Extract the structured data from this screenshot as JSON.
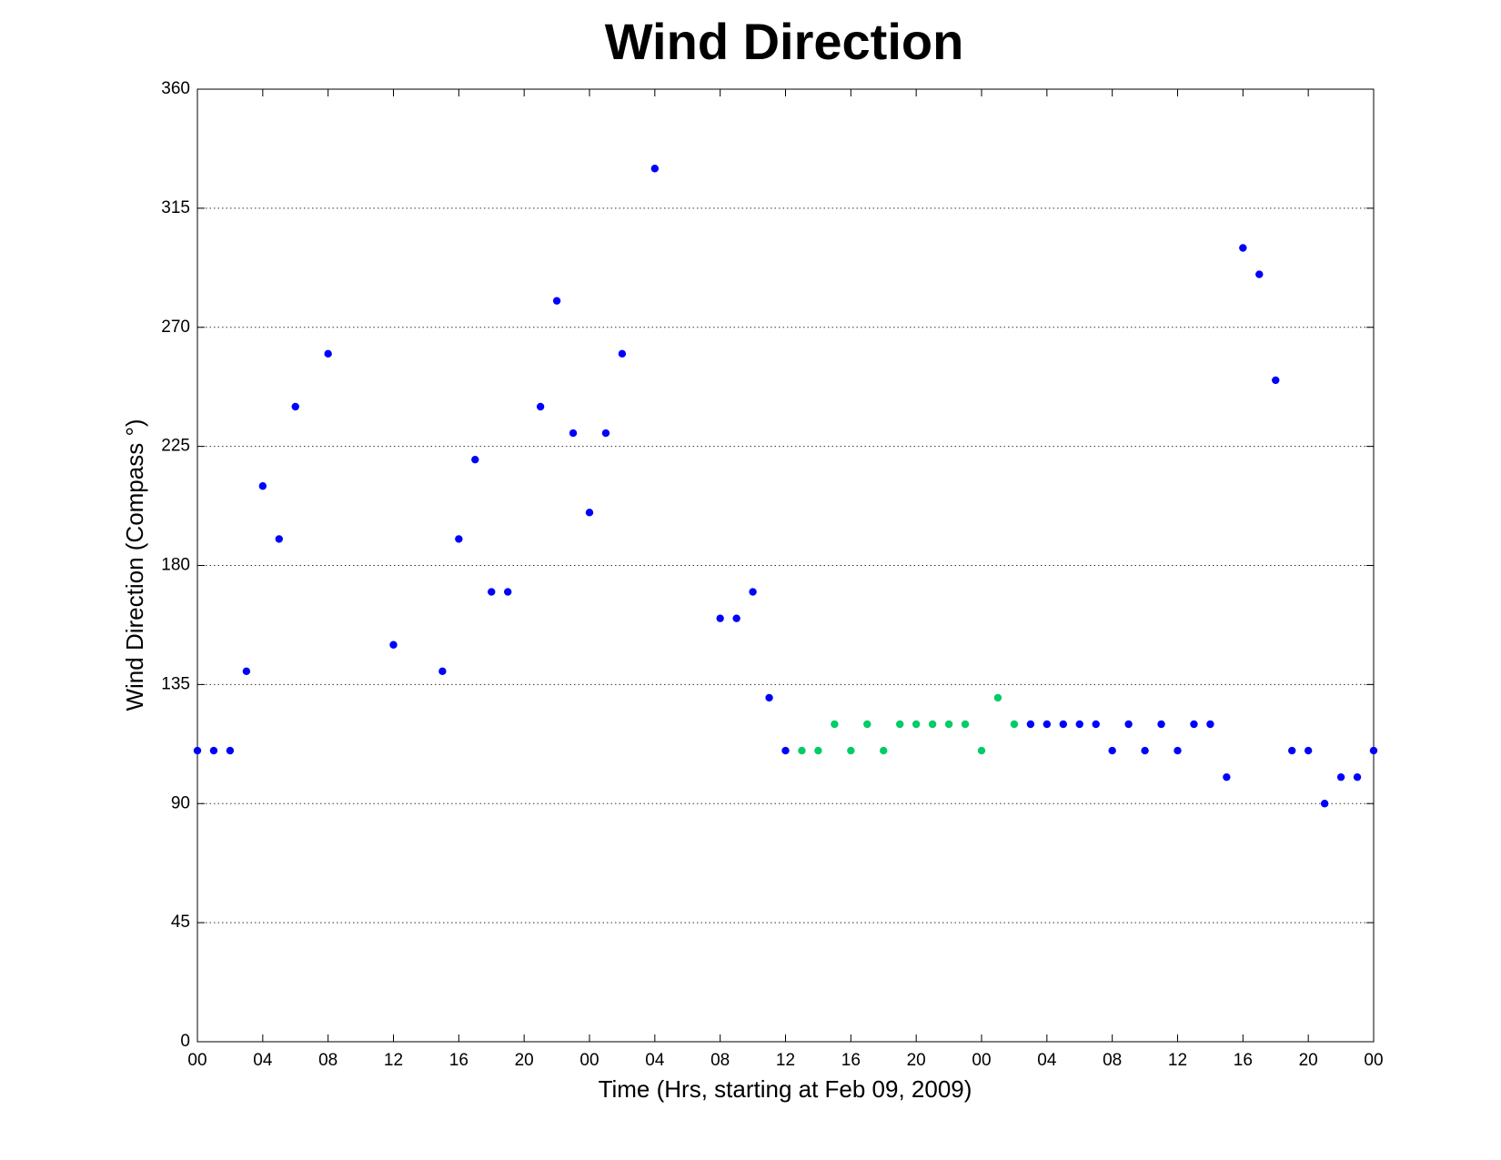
{
  "chart_data": {
    "type": "scatter",
    "title": "Wind Direction",
    "x_label": "Time (Hrs, starting at Feb 09, 2009)",
    "y_label": "Wind Direction (Compass °)",
    "xlim": [
      0,
      72
    ],
    "ylim": [
      0,
      360
    ],
    "yticks": [
      0,
      45,
      90,
      135,
      180,
      225,
      270,
      315,
      360
    ],
    "xticks": [
      {
        "value": 0,
        "label": "00"
      },
      {
        "value": 4,
        "label": "04"
      },
      {
        "value": 8,
        "label": "08"
      },
      {
        "value": 12,
        "label": "12"
      },
      {
        "value": 16,
        "label": "16"
      },
      {
        "value": 20,
        "label": "20"
      },
      {
        "value": 24,
        "label": "00"
      },
      {
        "value": 28,
        "label": "04"
      },
      {
        "value": 32,
        "label": "08"
      },
      {
        "value": 36,
        "label": "12"
      },
      {
        "value": 40,
        "label": "16"
      },
      {
        "value": 44,
        "label": "20"
      },
      {
        "value": 48,
        "label": "00"
      },
      {
        "value": 52,
        "label": "04"
      },
      {
        "value": 56,
        "label": "08"
      },
      {
        "value": 60,
        "label": "12"
      },
      {
        "value": 64,
        "label": "16"
      },
      {
        "value": 68,
        "label": "20"
      },
      {
        "value": 72,
        "label": "00"
      }
    ],
    "grid": true,
    "series": [
      {
        "color": "#0000ff",
        "x": [
          0,
          1,
          2,
          3,
          4,
          5,
          6,
          8,
          12,
          15,
          16,
          17,
          18,
          19,
          21,
          22,
          23,
          24,
          25,
          26,
          28,
          32,
          33,
          34,
          35,
          36,
          51,
          52,
          53,
          54,
          55,
          56,
          57,
          58,
          59,
          60,
          61,
          62,
          63,
          64,
          65,
          66,
          67,
          68,
          69,
          70,
          71,
          72
        ],
        "values": [
          110,
          110,
          110,
          140,
          210,
          190,
          240,
          260,
          150,
          140,
          190,
          220,
          170,
          170,
          240,
          280,
          230,
          200,
          230,
          260,
          330,
          160,
          160,
          170,
          130,
          110,
          120,
          120,
          120,
          120,
          120,
          110,
          120,
          110,
          120,
          110,
          120,
          120,
          100,
          300,
          290,
          250,
          110,
          110,
          90,
          100,
          100,
          110
        ]
      },
      {
        "color": "#00cc66",
        "x": [
          37,
          38,
          39,
          40,
          41,
          42,
          43,
          44,
          45,
          46,
          47,
          48,
          49,
          50
        ],
        "values": [
          110,
          110,
          120,
          110,
          120,
          110,
          120,
          120,
          120,
          120,
          120,
          110,
          130,
          120
        ]
      }
    ]
  }
}
